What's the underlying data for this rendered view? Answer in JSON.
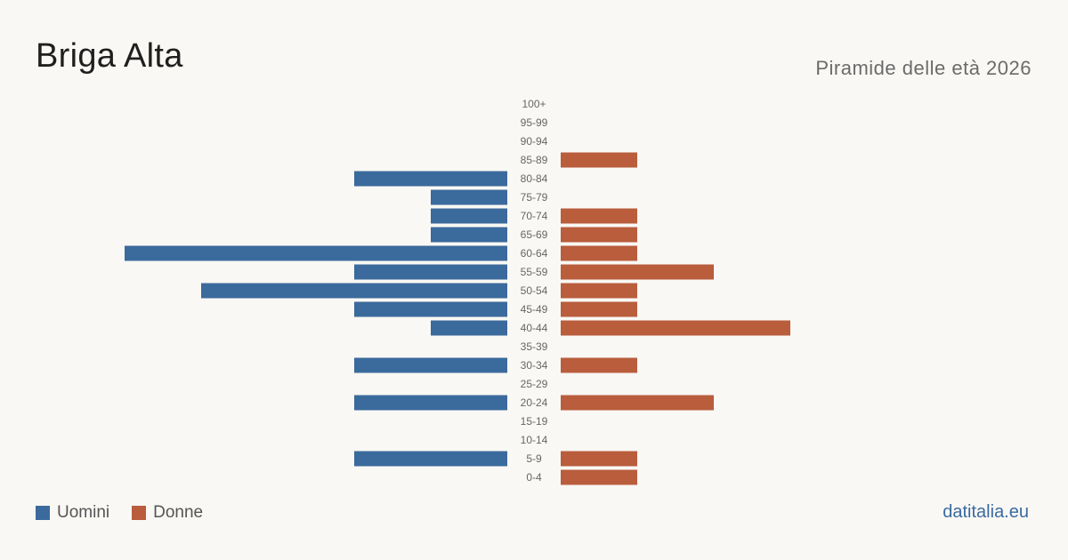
{
  "header": {
    "title": "Briga Alta",
    "subtitle": "Piramide delle età 2026"
  },
  "legend": {
    "men_label": "Uomini",
    "women_label": "Donne"
  },
  "footer": {
    "source": "datitalia.eu"
  },
  "colors": {
    "men": "#3b6a9c",
    "women": "#b95d3c",
    "label": "#666666"
  },
  "chart_data": {
    "type": "bar",
    "orientation": "horizontal-population-pyramid",
    "categories": [
      "100+",
      "95-99",
      "90-94",
      "85-89",
      "80-84",
      "75-79",
      "70-74",
      "65-69",
      "60-64",
      "55-59",
      "50-54",
      "45-49",
      "40-44",
      "35-39",
      "30-34",
      "25-29",
      "20-24",
      "15-19",
      "10-14",
      "5-9",
      "0-4"
    ],
    "series": [
      {
        "name": "Uomini",
        "values": [
          0,
          0,
          0,
          0,
          2,
          1,
          1,
          1,
          5,
          2,
          4,
          2,
          1,
          0,
          2,
          0,
          2,
          0,
          0,
          2,
          0
        ]
      },
      {
        "name": "Donne",
        "values": [
          0,
          0,
          0,
          1,
          0,
          0,
          1,
          1,
          1,
          2,
          1,
          1,
          3,
          0,
          1,
          0,
          2,
          0,
          0,
          1,
          1
        ]
      }
    ],
    "legend_position": "bottom-left",
    "grid": false
  }
}
